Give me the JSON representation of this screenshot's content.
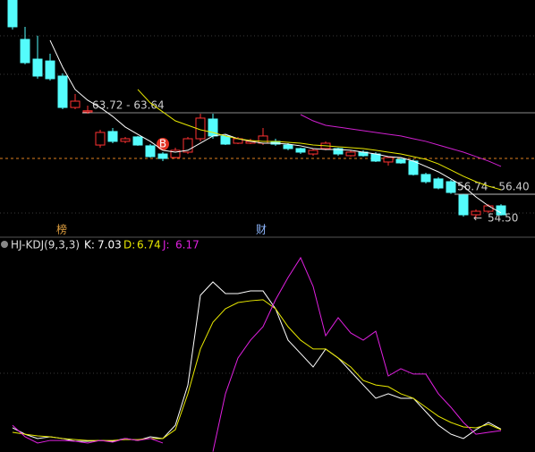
{
  "chart_data": [
    {
      "type": "candlestick",
      "up_color": "#ff3232",
      "down_color": "#54fcfc",
      "open": [
        73.52,
        70.08,
        68.36,
        68.2,
        66.88,
        64.14,
        63.75,
        60.86,
        62.04,
        61.18,
        61.57,
        60.79,
        60.08,
        59.77,
        60.24,
        61.41,
        63.13,
        61.65,
        61.02,
        61.02,
        61.02,
        61.18,
        60.86,
        60.55,
        60.08,
        60.55,
        60.55,
        59.93,
        60.24,
        60.08,
        59.38,
        59.61,
        59.46,
        58.29,
        57.9,
        57.66,
        56.49,
        54.77,
        55.08,
        55.55
      ],
      "close": [
        71.18,
        68.05,
        66.88,
        66.65,
        64.14,
        64.69,
        63.85,
        61.96,
        61.18,
        61.41,
        60.86,
        59.85,
        59.69,
        60.4,
        61.41,
        63.21,
        61.65,
        60.94,
        61.41,
        61.18,
        61.65,
        60.94,
        60.55,
        60.24,
        60.4,
        61.02,
        60.08,
        60.24,
        59.93,
        59.46,
        59.77,
        59.3,
        58.29,
        57.66,
        57.11,
        56.72,
        54.77,
        55.08,
        55.55,
        54.77
      ],
      "high": [
        73.52,
        71.18,
        70.4,
        68.83,
        67.11,
        65.32,
        64.3,
        62.19,
        62.35,
        61.57,
        61.65,
        60.94,
        60.24,
        60.63,
        61.57,
        63.6,
        63.6,
        61.8,
        61.57,
        61.41,
        62.35,
        61.41,
        61.02,
        60.63,
        60.55,
        61.18,
        60.63,
        60.4,
        60.4,
        60.24,
        59.85,
        59.77,
        59.61,
        58.44,
        58.05,
        57.82,
        56.6,
        55.24,
        55.7,
        55.7
      ],
      "low": [
        70.94,
        67.9,
        66.65,
        66.49,
        63.99,
        63.99,
        63.6,
        60.63,
        61.02,
        61.02,
        60.79,
        59.77,
        59.46,
        59.69,
        60.08,
        61.18,
        61.41,
        60.86,
        60.94,
        60.94,
        60.86,
        60.79,
        60.4,
        60.08,
        59.93,
        60.4,
        59.93,
        59.85,
        59.85,
        59.38,
        59.07,
        59.22,
        58.2,
        57.5,
        57.0,
        56.6,
        54.6,
        54.5,
        54.93,
        54.7
      ],
      "series": [
        {
          "color": "#ffffff",
          "values": [
            null,
            null,
            null,
            70.0,
            67.66,
            65.71,
            64.77,
            64.14,
            63.36,
            62.43,
            61.8,
            61.18,
            60.4,
            60.24,
            60.4,
            61.02,
            61.65,
            61.8,
            61.41,
            61.18,
            61.02,
            61.02,
            60.94,
            60.79,
            60.55,
            60.47,
            60.47,
            60.4,
            60.24,
            60.08,
            59.85,
            59.77,
            59.46,
            58.99,
            58.52,
            57.9,
            57.27,
            56.33,
            55.55,
            54.93
          ]
        },
        {
          "color": "#e8e800",
          "values": [
            null,
            null,
            null,
            null,
            null,
            null,
            null,
            null,
            null,
            null,
            65.71,
            64.54,
            63.75,
            62.97,
            62.58,
            62.19,
            61.96,
            61.65,
            61.41,
            61.25,
            61.18,
            61.18,
            61.1,
            61.02,
            60.86,
            60.79,
            60.71,
            60.63,
            60.55,
            60.4,
            60.24,
            60.08,
            59.85,
            59.61,
            59.22,
            58.68,
            58.13,
            57.66,
            57.27,
            56.96
          ]
        },
        {
          "color": "#d020d0",
          "values": [
            null,
            null,
            null,
            null,
            null,
            null,
            null,
            null,
            null,
            null,
            null,
            null,
            null,
            null,
            null,
            null,
            null,
            null,
            null,
            null,
            null,
            null,
            null,
            63.52,
            62.97,
            62.58,
            62.43,
            62.27,
            62.11,
            61.96,
            61.8,
            61.65,
            61.41,
            61.18,
            60.86,
            60.55,
            60.24,
            59.85,
            59.46,
            58.99
          ]
        }
      ],
      "ylim": [
        53.05,
        73.52
      ],
      "price_lines": [
        "63.72 - 63.64",
        "56.74 - 56.40"
      ],
      "low_label": "54.50",
      "signal": "B",
      "events": [
        "榜",
        "财"
      ]
    },
    {
      "type": "line",
      "title": "HJ-KDJ(9,3,3)",
      "series": [
        {
          "name": "K:",
          "color": "#ffffff",
          "values": [
            7.8,
            4.1,
            1.6,
            2.6,
            1.6,
            0,
            0,
            0.5,
            0,
            1.6,
            0.5,
            2.6,
            1.6,
            9.3,
            32.6,
            84.5,
            92.2,
            85.5,
            85.5,
            87.0,
            87.0,
            76.7,
            58.5,
            50.8,
            43.0,
            53.4,
            48.2,
            40.4,
            32.6,
            24.9,
            27.5,
            24.9,
            24.9,
            17.1,
            9.3,
            4.1,
            1.6,
            6.7,
            10.9,
            7.03
          ]
        },
        {
          "name": "D:",
          "color": "#e8e800",
          "values": [
            5.2,
            4.1,
            3.1,
            2.6,
            1.6,
            1.0,
            0.5,
            0.5,
            0.5,
            1.0,
            1.0,
            1.6,
            1.6,
            6.7,
            27.5,
            53.4,
            68.9,
            76.7,
            80.3,
            81.3,
            81.9,
            76.7,
            66.3,
            58.5,
            53.4,
            53.4,
            48.2,
            43.0,
            35.2,
            32.6,
            31.6,
            27.5,
            24.9,
            19.7,
            14.5,
            10.9,
            8.3,
            7.8,
            9.8,
            6.74
          ]
        },
        {
          "name": "J:",
          "color": "#e020e0",
          "values": [
            9.3,
            2.6,
            -1.0,
            0.5,
            0.5,
            0,
            -1.0,
            0.5,
            -0.5,
            1.6,
            0.5,
            1.6,
            -1.0,
            null,
            null,
            null,
            -6.0,
            27.5,
            48.2,
            58.5,
            66.3,
            81.9,
            94.8,
            106.2,
            89.6,
            61.1,
            71.5,
            62.7,
            58.5,
            63.7,
            37.8,
            42.0,
            38.9,
            38.9,
            27.5,
            19.7,
            10.9,
            4.1,
            5.2,
            6.17
          ]
        }
      ],
      "ylim": [
        -6.2,
        109.3
      ]
    }
  ]
}
